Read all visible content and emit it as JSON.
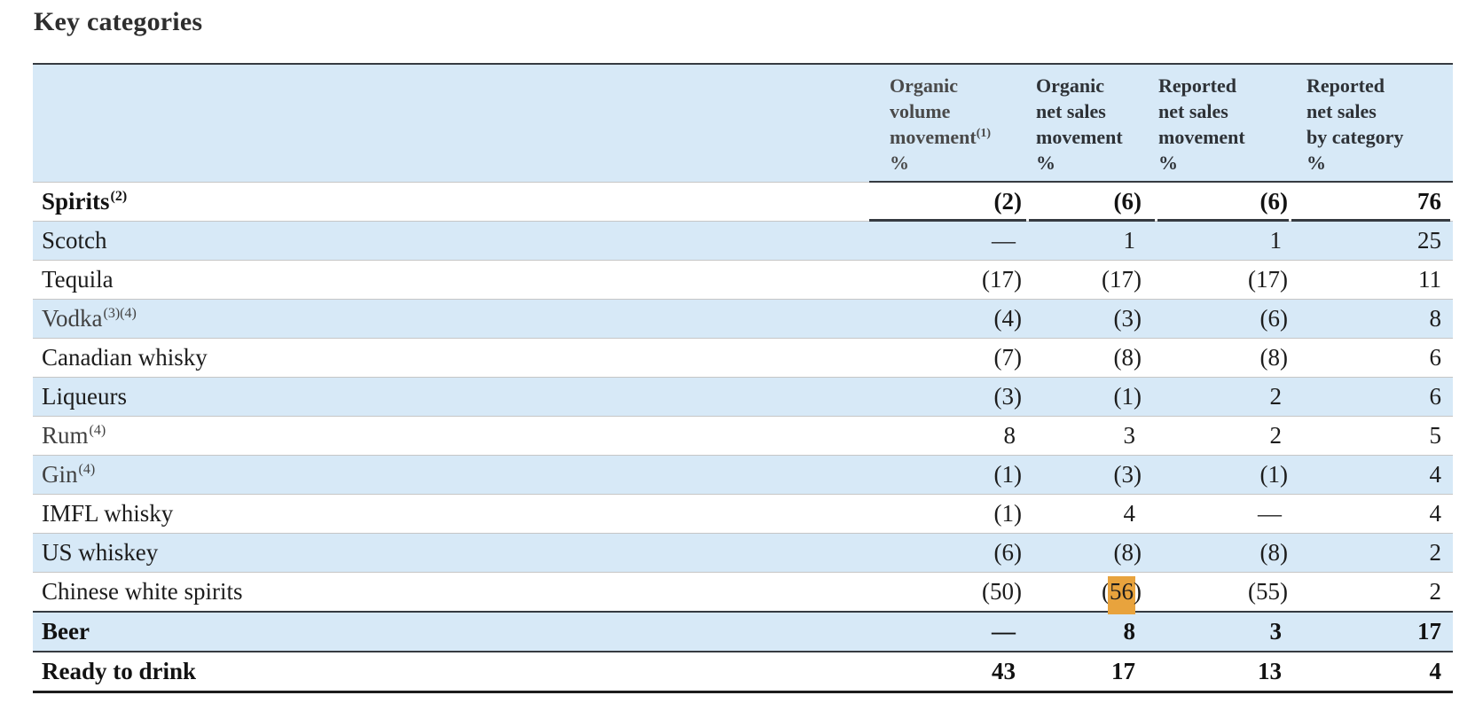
{
  "title": "Key categories",
  "colors": {
    "row_shade": "#d7e9f7",
    "highlight": "#e8a33d",
    "rule_dark": "#363b41",
    "rule_light": "#c6c6c6"
  },
  "table": {
    "columns": [
      {
        "lines": [
          "Organic",
          "volume",
          "movement"
        ],
        "sup": "(1)",
        "unit": "%"
      },
      {
        "lines": [
          "Organic",
          "net sales",
          "movement"
        ],
        "sup": "",
        "unit": "%"
      },
      {
        "lines": [
          "Reported",
          "net sales",
          "movement"
        ],
        "sup": "",
        "unit": "%"
      },
      {
        "lines": [
          "Reported",
          "net sales",
          "by category"
        ],
        "sup": "",
        "unit": "%"
      }
    ],
    "rows": [
      {
        "label": "Spirits",
        "sup": "(2)",
        "values": [
          "(2)",
          "(6)",
          "(6)",
          "76"
        ],
        "style": {
          "bold": true,
          "value_underline": true
        }
      },
      {
        "label": "Scotch",
        "sup": "",
        "values": [
          "—",
          "1",
          "1",
          "25"
        ],
        "style": {
          "shaded": true
        }
      },
      {
        "label": "Tequila",
        "sup": "",
        "values": [
          "(17)",
          "(17)",
          "(17)",
          "11"
        ],
        "style": {}
      },
      {
        "label": "Vodka",
        "sup": "(3)(4)",
        "values": [
          "(4)",
          "(3)",
          "(6)",
          "8"
        ],
        "style": {
          "shaded": true,
          "muted": true
        }
      },
      {
        "label": "Canadian whisky",
        "sup": "",
        "values": [
          "(7)",
          "(8)",
          "(8)",
          "6"
        ],
        "style": {}
      },
      {
        "label": "Liqueurs",
        "sup": "",
        "values": [
          "(3)",
          "(1)",
          "2",
          "6"
        ],
        "style": {
          "shaded": true
        }
      },
      {
        "label": "Rum",
        "sup": "(4)",
        "values": [
          "8",
          "3",
          "2",
          "5"
        ],
        "style": {
          "muted": true
        }
      },
      {
        "label": "Gin",
        "sup": "(4)",
        "values": [
          "(1)",
          "(3)",
          "(1)",
          "4"
        ],
        "style": {
          "shaded": true,
          "muted": true
        }
      },
      {
        "label": "IMFL whisky",
        "sup": "",
        "values": [
          "(1)",
          "4",
          "—",
          "4"
        ],
        "style": {}
      },
      {
        "label": "US whiskey",
        "sup": "",
        "values": [
          "(6)",
          "(8)",
          "(8)",
          "2"
        ],
        "style": {
          "shaded": true
        }
      },
      {
        "label": "Chinese white spirits",
        "sup": "",
        "values": [
          "(50)",
          {
            "pre": "(",
            "highlight": "56",
            "post": ")"
          },
          "(55)",
          "2"
        ],
        "style": {
          "bottom_rule": "dark"
        }
      },
      {
        "label": "Beer",
        "sup": "",
        "values": [
          "—",
          "8",
          "3",
          "17"
        ],
        "style": {
          "bold": true,
          "shaded": true,
          "bottom_rule": "dark"
        }
      },
      {
        "label": "Ready to drink",
        "sup": "",
        "values": [
          "43",
          "17",
          "13",
          "4"
        ],
        "style": {
          "bold": true,
          "bottom_rule": "thick"
        }
      }
    ]
  }
}
